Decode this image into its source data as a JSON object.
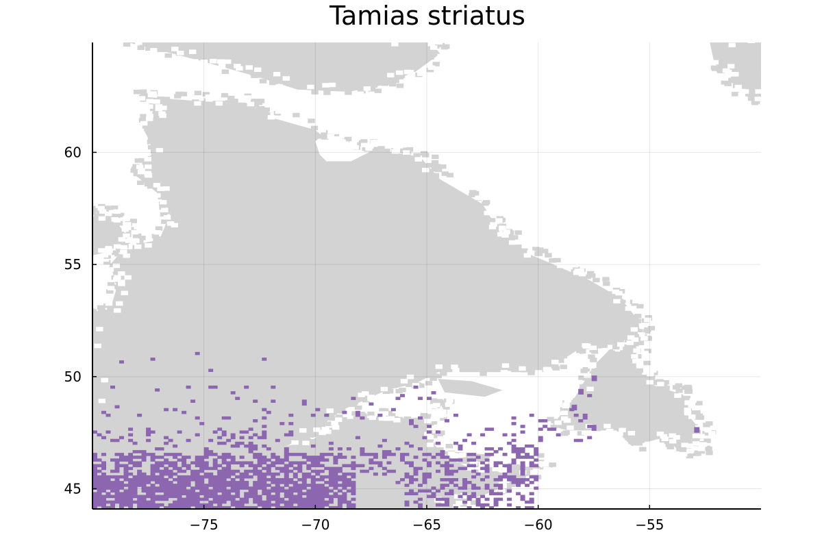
{
  "chart_data": {
    "type": "heatmap",
    "title": "Tamias striatus",
    "xlabel": "",
    "ylabel": "",
    "xlim": [
      -80,
      -50
    ],
    "ylim": [
      44.1,
      64.9
    ],
    "x_ticks": [
      -75,
      -70,
      -65,
      -60,
      -55
    ],
    "y_ticks": [
      45,
      50,
      55,
      60
    ],
    "x_tick_labels": [
      "−75",
      "−70",
      "−65",
      "−60",
      "−55"
    ],
    "y_tick_labels": [
      "45",
      "50",
      "55",
      "60"
    ],
    "grid": true,
    "legend": "none",
    "colors": {
      "land": "#d3d3d3",
      "presence": "#8c67b0",
      "background": "#ffffff"
    },
    "series": [
      {
        "name": "",
        "kind": "land-mask"
      },
      {
        "name": "",
        "kind": "occurrence-cells"
      }
    ]
  }
}
